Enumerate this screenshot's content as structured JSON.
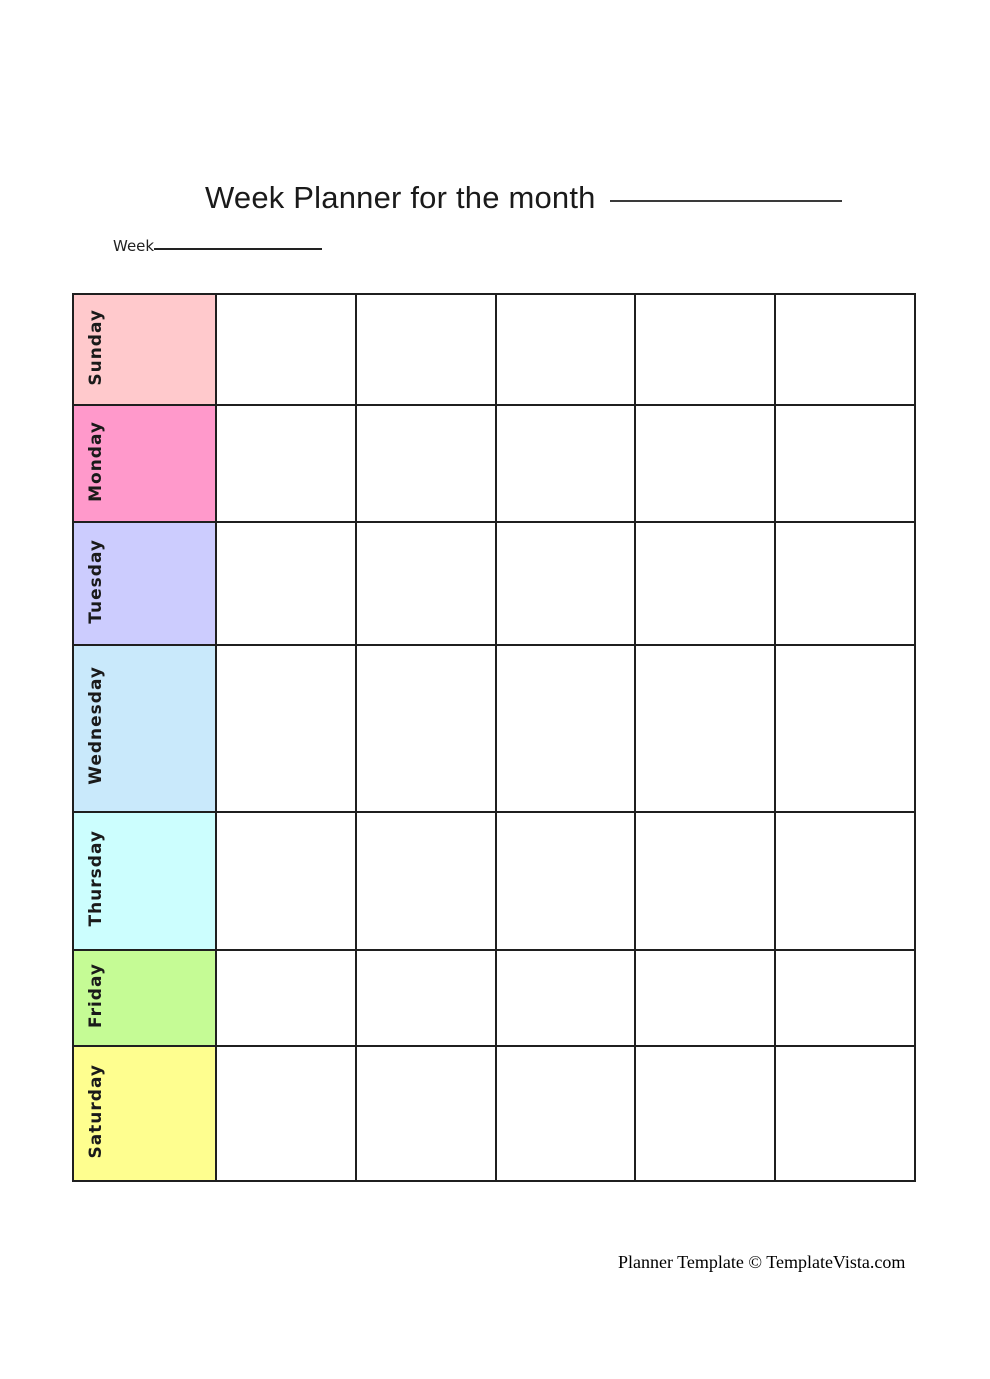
{
  "header": {
    "title": "Week Planner for the month",
    "week_label": "Week"
  },
  "planner": {
    "blank_columns": 5,
    "days": [
      {
        "label": "Sunday",
        "color": "#FFC9CC"
      },
      {
        "label": "Monday",
        "color": "#FF99CB"
      },
      {
        "label": "Tuesday",
        "color": "#CCCCFE"
      },
      {
        "label": "Wednesday",
        "color": "#C9E9FB"
      },
      {
        "label": "Thursday",
        "color": "#CCFEFE"
      },
      {
        "label": "Friday",
        "color": "#C5FB95"
      },
      {
        "label": "Saturday",
        "color": "#FEFE8F"
      }
    ],
    "border_color": "#1f1f1f"
  },
  "footer": {
    "credit": "Planner Template © TemplateVista.com"
  }
}
